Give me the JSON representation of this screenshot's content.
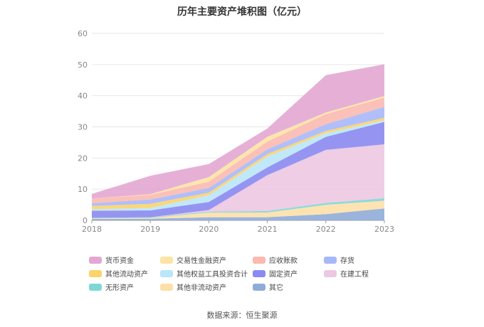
{
  "chart_data": {
    "type": "area",
    "title": "历年主要资产堆积图（亿元）",
    "x": [
      "2018",
      "2019",
      "2020",
      "2021",
      "2022",
      "2023"
    ],
    "ylim": [
      0,
      60
    ],
    "yticks": [
      "0",
      "10",
      "20",
      "30",
      "40",
      "50",
      "60"
    ],
    "grid": true,
    "legend_position": "bottom",
    "series": [
      {
        "name": "其它",
        "color": "#8facd8",
        "values": [
          0.5,
          0.5,
          1.0,
          1.0,
          2.0,
          3.8
        ]
      },
      {
        "name": "其他非流动资产",
        "color": "#fde0a8",
        "values": [
          0.2,
          0.3,
          1.5,
          1.5,
          3.0,
          2.5
        ]
      },
      {
        "name": "无形资产",
        "color": "#7fd6d6",
        "values": [
          0.1,
          0.2,
          0.3,
          0.5,
          0.6,
          0.8
        ]
      },
      {
        "name": "在建工程",
        "color": "#ecc8e2",
        "values": [
          0.0,
          0.0,
          0.5,
          11.5,
          17.0,
          17.3
        ]
      },
      {
        "name": "固定资产",
        "color": "#8a8af0",
        "values": [
          2.3,
          2.2,
          2.6,
          2.5,
          4.2,
          7.2
        ]
      },
      {
        "name": "其他权益工具投资合计",
        "color": "#b9e6f8",
        "values": [
          0.5,
          0.8,
          2.2,
          3.5,
          1.2,
          0.5
        ]
      },
      {
        "name": "其他流动资产",
        "color": "#fbd36a",
        "values": [
          1.0,
          1.3,
          0.8,
          0.8,
          0.7,
          0.8
        ]
      },
      {
        "name": "存货",
        "color": "#a7b8fa",
        "values": [
          0.9,
          1.4,
          1.5,
          1.5,
          2.2,
          3.5
        ]
      },
      {
        "name": "应收账款",
        "color": "#fbb9b0",
        "values": [
          1.5,
          1.5,
          2.0,
          2.5,
          3.2,
          3.0
        ]
      },
      {
        "name": "交易性金融资产",
        "color": "#fde3a4",
        "values": [
          0.0,
          0.2,
          1.5,
          1.5,
          0.5,
          0.5
        ]
      },
      {
        "name": "货币资金",
        "color": "#e3a7d2",
        "values": [
          1.5,
          5.9,
          4.2,
          2.7,
          12.0,
          10.2
        ]
      }
    ]
  },
  "legend_order": [
    {
      "name": "货币资金",
      "color": "#e3a7d2"
    },
    {
      "name": "交易性金融资产",
      "color": "#fde3a4"
    },
    {
      "name": "应收账款",
      "color": "#fbb9b0"
    },
    {
      "name": "存货",
      "color": "#a7b8fa"
    },
    {
      "name": "其他流动资产",
      "color": "#fbd36a"
    },
    {
      "name": "其他权益工具投资合计",
      "color": "#b9e6f8"
    },
    {
      "name": "固定资产",
      "color": "#8a8af0"
    },
    {
      "name": "在建工程",
      "color": "#ecc8e2"
    },
    {
      "name": "无形资产",
      "color": "#7fd6d6"
    },
    {
      "name": "其他非流动资产",
      "color": "#fde0a8"
    },
    {
      "name": "其它",
      "color": "#8facd8"
    }
  ],
  "source": "数据来源：恒生聚源"
}
